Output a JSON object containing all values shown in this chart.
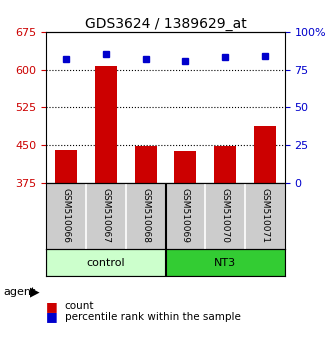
{
  "title": "GDS3624 / 1389629_at",
  "categories": [
    "GSM510066",
    "GSM510067",
    "GSM510068",
    "GSM510069",
    "GSM510070",
    "GSM510071"
  ],
  "bar_values": [
    440,
    607,
    447,
    437,
    447,
    487
  ],
  "percentile_values": [
    82,
    85,
    82,
    81,
    83,
    84
  ],
  "bar_color": "#cc0000",
  "dot_color": "#0000cc",
  "ylim_left": [
    375,
    675
  ],
  "ylim_right": [
    0,
    100
  ],
  "yticks_left": [
    375,
    450,
    525,
    600,
    675
  ],
  "yticks_right": [
    0,
    25,
    50,
    75,
    100
  ],
  "grid_values": [
    450,
    525,
    600
  ],
  "control_color": "#ccffcc",
  "nt3_color": "#33cc33",
  "label_bg_color": "#cccccc",
  "bg_color": "#ffffff"
}
